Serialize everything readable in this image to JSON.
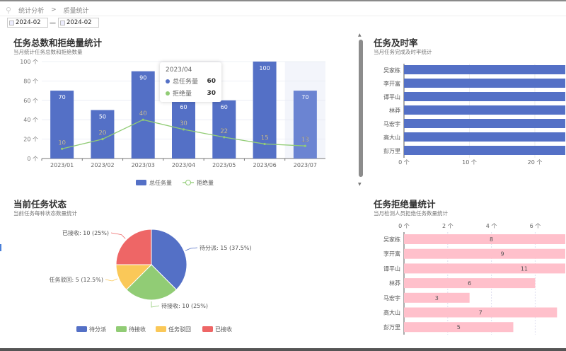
{
  "breadcrumb": {
    "items": [
      "统计分析",
      "质量统计"
    ],
    "separator": ">"
  },
  "date_range": {
    "start": "2024-02",
    "end": "2024-02",
    "separator": "—"
  },
  "colors": {
    "blue": "#5470c6",
    "green": "#91cc75",
    "yellow": "#fac858",
    "red": "#ee6666",
    "pink": "#ffc0cb"
  },
  "chart_data": [
    {
      "type": "bar",
      "title": "任务总数和拒绝量统计",
      "subtitle": "当月统计任务总数和拒绝数量",
      "categories": [
        "2023/01",
        "2023/02",
        "2023/03",
        "2023/04",
        "2023/05",
        "2023/06",
        "2023/07"
      ],
      "ylim": [
        0,
        100
      ],
      "yticks": [
        "0 个",
        "20 个",
        "40 个",
        "60 个",
        "80 个",
        "100 个"
      ],
      "series": [
        {
          "name": "总任务量",
          "type": "bar",
          "values": [
            70,
            50,
            90,
            60,
            60,
            100,
            70
          ]
        },
        {
          "name": "拒绝量",
          "type": "line",
          "values": [
            10,
            20,
            40,
            30,
            22,
            15,
            13
          ]
        }
      ],
      "legend": "bottom",
      "tooltip": {
        "category": "2023/04",
        "rows": [
          {
            "name": "总任务量",
            "value": "60"
          },
          {
            "name": "拒绝量",
            "value": "30"
          }
        ]
      }
    },
    {
      "type": "bar",
      "orientation": "horizontal",
      "title": "任务及时率",
      "subtitle": "当月任务完成及时率统计",
      "categories": [
        "吴家栋",
        "李开富",
        "谭平山",
        "林莽",
        "马宏宇",
        "高大山",
        "彭万里"
      ],
      "xticks": [
        "0 个",
        "10 个",
        "20 个"
      ]
    },
    {
      "type": "pie",
      "title": "当前任务状态",
      "subtitle": "当前任务每种状态数量统计",
      "slices": [
        {
          "name": "待分派",
          "value": 15,
          "label": "待分派: 15 (37.5%)"
        },
        {
          "name": "待接收",
          "value": 10,
          "label": "待接收: 10 (25%)"
        },
        {
          "name": "任务驳回",
          "value": 5,
          "label": "任务驳回: 5 (12.5%)"
        },
        {
          "name": "已接收",
          "value": 10,
          "label": "已接收: 10 (25%)"
        }
      ],
      "legend": "bottom"
    },
    {
      "type": "bar",
      "orientation": "horizontal",
      "title": "任务拒绝量统计",
      "subtitle": "当月检测人员拒绝任务数量统计",
      "categories": [
        "吴家栋",
        "李开富",
        "谭平山",
        "林莽",
        "马宏宇",
        "高大山",
        "彭万里"
      ],
      "values": [
        8,
        9,
        11,
        6,
        3,
        7,
        5
      ],
      "xticks": [
        "0 个",
        "2 个",
        "4 个",
        "6 个"
      ],
      "xaxis_position": "top"
    }
  ]
}
